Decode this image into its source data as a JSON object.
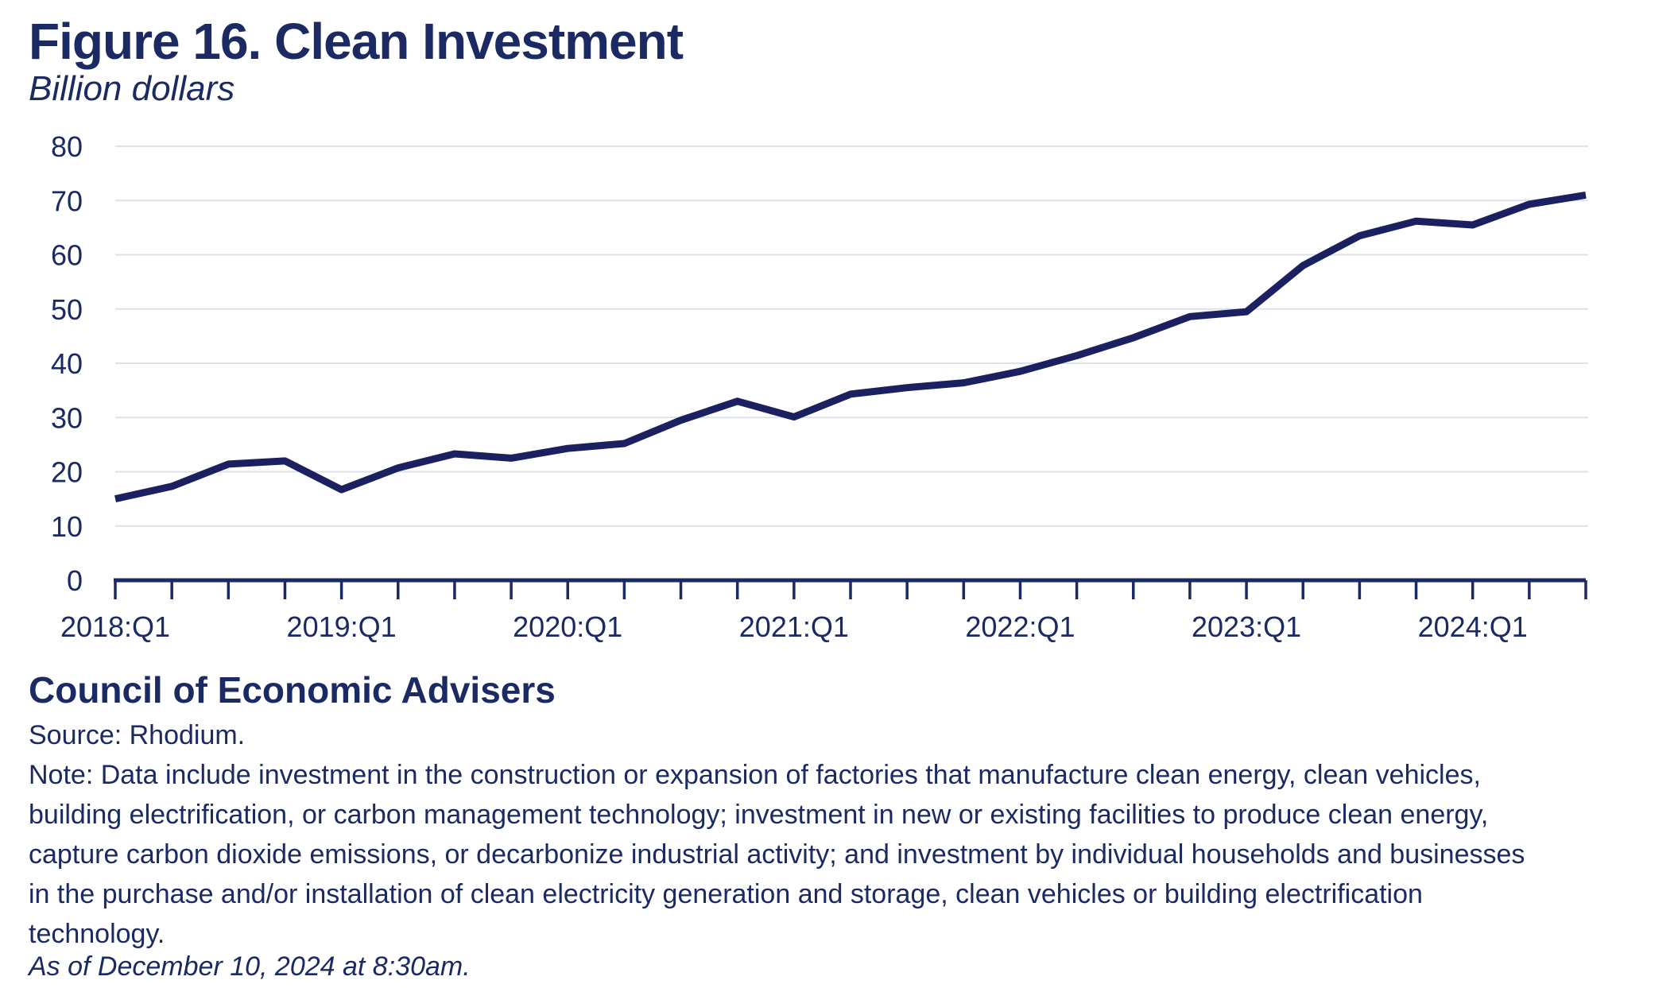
{
  "header": {
    "title": "Figure 16. Clean Investment",
    "subtitle": "Billion dollars"
  },
  "chart_data": {
    "type": "line",
    "title": "Figure 16. Clean Investment",
    "ylabel": "Billion dollars",
    "xlabel": "",
    "grid": "horizontal",
    "legend": "none",
    "ylim": [
      0,
      80
    ],
    "ytick_interval": 10,
    "ytick_labels": [
      "0",
      "10",
      "20",
      "30",
      "40",
      "50",
      "60",
      "70",
      "80"
    ],
    "xtick_labels": [
      "2018:Q1",
      "2019:Q1",
      "2020:Q1",
      "2021:Q1",
      "2022:Q1",
      "2023:Q1",
      "2024:Q1"
    ],
    "categories": [
      "2018:Q1",
      "2018:Q2",
      "2018:Q3",
      "2018:Q4",
      "2019:Q1",
      "2019:Q2",
      "2019:Q3",
      "2019:Q4",
      "2020:Q1",
      "2020:Q2",
      "2020:Q3",
      "2020:Q4",
      "2021:Q1",
      "2021:Q2",
      "2021:Q3",
      "2021:Q4",
      "2022:Q1",
      "2022:Q2",
      "2022:Q3",
      "2022:Q4",
      "2023:Q1",
      "2023:Q2",
      "2023:Q3",
      "2023:Q4",
      "2024:Q1",
      "2024:Q2",
      "2024:Q3"
    ],
    "series": [
      {
        "name": "Clean investment",
        "values": [
          15.0,
          17.3,
          21.4,
          22.0,
          16.7,
          20.7,
          23.3,
          22.5,
          24.3,
          25.2,
          29.5,
          33.0,
          30.1,
          34.3,
          35.5,
          36.4,
          38.5,
          41.4,
          44.7,
          48.6,
          49.5,
          58.0,
          63.5,
          66.2,
          65.5,
          69.3,
          71.0
        ]
      }
    ]
  },
  "footer": {
    "org": "Council of Economic Advisers",
    "source": "Source: Rhodium.",
    "note_lines": [
      "Note: Data include investment in the construction or expansion of factories that manufacture clean energy, clean vehicles,",
      "building electrification, or carbon management technology; investment in new or existing facilities to produce clean energy,",
      "capture carbon dioxide emissions, or decarbonize industrial activity; and investment by individual households and businesses",
      "in the purchase and/or installation of clean electricity generation and storage, clean vehicles or building electrification",
      "technology."
    ],
    "as_of": "As of December 10, 2024 at 8:30am."
  },
  "colors": {
    "text": "#1b2a63",
    "line": "#1a2060",
    "grid": "#dce1ec",
    "axis": "#1b2a63",
    "background": "#ffffff"
  }
}
